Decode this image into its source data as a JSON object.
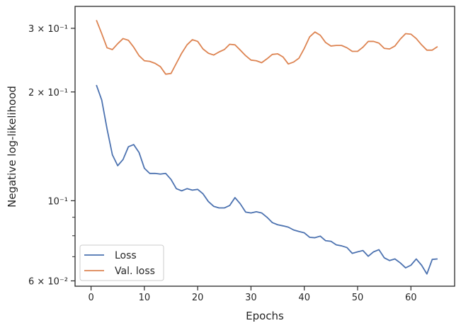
{
  "chart_data": {
    "type": "line",
    "title": "",
    "xlabel": "Epochs",
    "ylabel": "Negative log-likelihood",
    "yscale": "log",
    "xlim": [
      -3,
      68.2
    ],
    "ylim": [
      0.058,
      0.345
    ],
    "grid": false,
    "legend_position": "bottom-left",
    "x_ticks": [
      0,
      10,
      20,
      30,
      40,
      50,
      60
    ],
    "y_ticks": [
      {
        "value": 0.06,
        "label": "6 × 10⁻²"
      },
      {
        "value": 0.1,
        "label": "10⁻¹"
      },
      {
        "value": 0.2,
        "label": "2 × 10⁻¹"
      },
      {
        "value": 0.3,
        "label": "3 × 10⁻¹"
      }
    ],
    "y_minor_ticks": [
      0.07,
      0.08,
      0.09
    ],
    "x": [
      1,
      2,
      3,
      4,
      5,
      6,
      7,
      8,
      9,
      10,
      11,
      12,
      13,
      14,
      15,
      16,
      17,
      18,
      19,
      20,
      21,
      22,
      23,
      24,
      25,
      26,
      27,
      28,
      29,
      30,
      31,
      32,
      33,
      34,
      35,
      36,
      37,
      38,
      39,
      40,
      41,
      42,
      43,
      44,
      45,
      46,
      47,
      48,
      49,
      50,
      51,
      52,
      53,
      54,
      55,
      56,
      57,
      58,
      59,
      60,
      61,
      62,
      63,
      64,
      65
    ],
    "series": [
      {
        "name": "Loss",
        "color": "#4c72b0",
        "values": [
          0.209,
          0.19,
          0.158,
          0.134,
          0.125,
          0.13,
          0.141,
          0.143,
          0.136,
          0.123,
          0.119,
          0.119,
          0.1185,
          0.119,
          0.1145,
          0.108,
          0.1065,
          0.108,
          0.107,
          0.1075,
          0.1045,
          0.0995,
          0.0965,
          0.0955,
          0.0955,
          0.097,
          0.102,
          0.098,
          0.093,
          0.0925,
          0.0932,
          0.0925,
          0.09,
          0.087,
          0.0858,
          0.0852,
          0.0845,
          0.083,
          0.0822,
          0.0815,
          0.0792,
          0.079,
          0.0798,
          0.0775,
          0.0772,
          0.0755,
          0.075,
          0.0742,
          0.0715,
          0.0722,
          0.0728,
          0.0702,
          0.0722,
          0.0732,
          0.0695,
          0.0683,
          0.069,
          0.0673,
          0.0652,
          0.0663,
          0.069,
          0.0663,
          0.0627,
          0.0688,
          0.069
        ]
      },
      {
        "name": "Val. loss",
        "color": "#dd8452",
        "values": [
          0.316,
          0.29,
          0.265,
          0.262,
          0.272,
          0.281,
          0.278,
          0.266,
          0.252,
          0.244,
          0.243,
          0.24,
          0.235,
          0.224,
          0.225,
          0.24,
          0.256,
          0.27,
          0.279,
          0.276,
          0.263,
          0.256,
          0.253,
          0.258,
          0.262,
          0.271,
          0.27,
          0.261,
          0.252,
          0.245,
          0.244,
          0.241,
          0.247,
          0.254,
          0.255,
          0.25,
          0.239,
          0.242,
          0.248,
          0.264,
          0.284,
          0.293,
          0.287,
          0.274,
          0.268,
          0.269,
          0.269,
          0.265,
          0.259,
          0.259,
          0.266,
          0.276,
          0.276,
          0.273,
          0.264,
          0.263,
          0.268,
          0.28,
          0.29,
          0.289,
          0.281,
          0.27,
          0.261,
          0.261,
          0.267
        ]
      }
    ]
  }
}
